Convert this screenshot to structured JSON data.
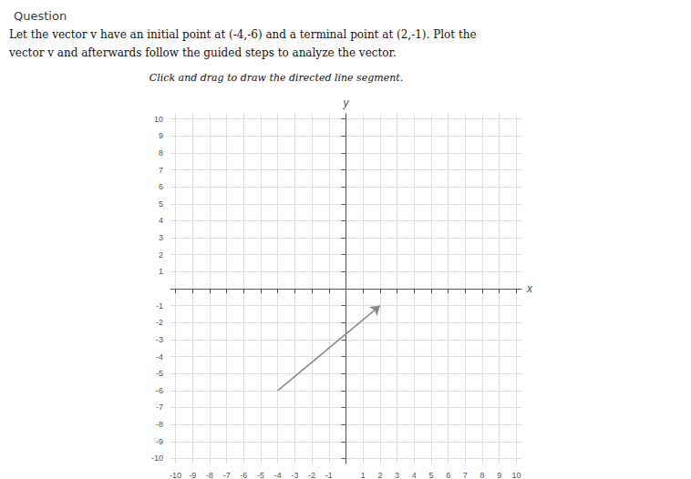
{
  "chart_data": {
    "type": "line",
    "title": "Question",
    "annotations": [
      "Let the vector v have an initial point at (-4,-6) and a terminal point at (2,-1). Plot the",
      "vector v and afterwards follow the guided steps to analyze the vector.",
      "Click and drag to draw the directed line segment."
    ],
    "x": [
      -4,
      2
    ],
    "values": [
      -6,
      -1
    ],
    "color": "#888888",
    "marker": "arrow",
    "xlabel": "x",
    "ylabel": "y",
    "xlim": [
      -10.3,
      10.3
    ],
    "ylim": [
      -10.3,
      10.3
    ],
    "xticks": [
      -10,
      -9,
      -8,
      -7,
      -6,
      -5,
      -4,
      -3,
      -2,
      -1,
      1,
      2,
      3,
      4,
      5,
      6,
      7,
      8,
      9,
      10
    ],
    "yticks": [
      -10,
      -9,
      -8,
      -7,
      -6,
      -5,
      -4,
      -3,
      -2,
      -1,
      1,
      2,
      3,
      4,
      5,
      6,
      7,
      8,
      9,
      10
    ],
    "grid": true
  }
}
